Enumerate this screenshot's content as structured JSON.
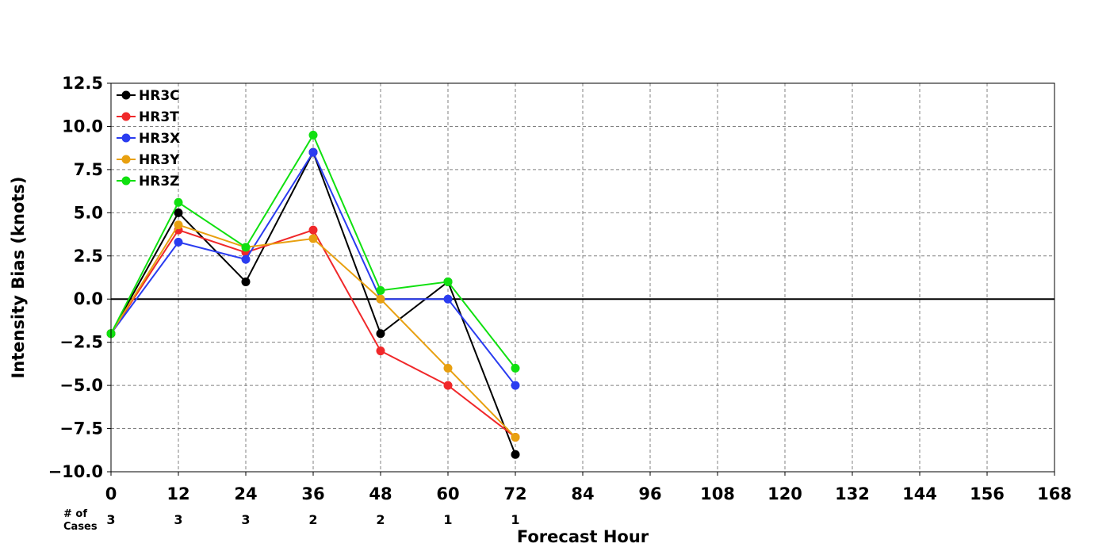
{
  "chart_data": {
    "type": "line",
    "xlabel": "Forecast Hour",
    "ylabel": "Intensity Bias (knots)",
    "xlim": [
      0,
      168
    ],
    "ylim": [
      -10,
      12.5
    ],
    "x_ticks": [
      "0",
      "12",
      "24",
      "36",
      "48",
      "60",
      "72",
      "84",
      "96",
      "108",
      "120",
      "132",
      "144",
      "156",
      "168"
    ],
    "y_ticks": [
      "12.5",
      "10.0",
      "7.5",
      "5.0",
      "2.5",
      "0.0",
      "−2.5",
      "−5.0",
      "−7.5",
      "−10.0"
    ],
    "y_tick_values": [
      12.5,
      10,
      7.5,
      5,
      2.5,
      0,
      -2.5,
      -5,
      -7.5,
      -10
    ],
    "grid": true,
    "grid_style": "dashed",
    "zero_line": true,
    "legend_placement": "top-left",
    "cases_label_line1": "# of",
    "cases_label_line2": "Cases",
    "cases": [
      {
        "x": 0,
        "n": "3"
      },
      {
        "x": 12,
        "n": "3"
      },
      {
        "x": 24,
        "n": "3"
      },
      {
        "x": 36,
        "n": "2"
      },
      {
        "x": 48,
        "n": "2"
      },
      {
        "x": 60,
        "n": "1"
      },
      {
        "x": 72,
        "n": "1"
      }
    ],
    "x": [
      0,
      12,
      24,
      36,
      48,
      60,
      72
    ],
    "series": [
      {
        "name": "HR3C",
        "color": "#000000",
        "values": [
          -2,
          5,
          1,
          8.5,
          -2,
          1,
          -9
        ]
      },
      {
        "name": "HR3T",
        "color": "#f0282a",
        "values": [
          -2,
          4,
          2.7,
          4,
          -3,
          -5,
          -8
        ]
      },
      {
        "name": "HR3X",
        "color": "#2a3cf0",
        "values": [
          -2,
          3.3,
          2.3,
          8.5,
          0,
          0,
          -5
        ]
      },
      {
        "name": "HR3Y",
        "color": "#e8a010",
        "values": [
          -2,
          4.3,
          3,
          3.5,
          0,
          -4,
          -8
        ]
      },
      {
        "name": "HR3Z",
        "color": "#10e010",
        "values": [
          -2,
          5.6,
          3,
          9.5,
          0.5,
          1,
          -4
        ]
      }
    ]
  }
}
